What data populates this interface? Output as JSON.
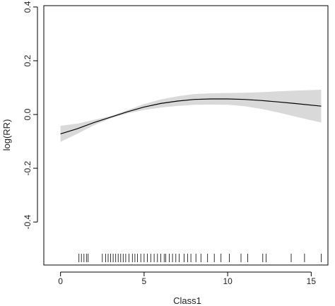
{
  "chart_data": {
    "type": "line",
    "xlabel": "Class1",
    "ylabel": "log(RR)",
    "xlim": [
      -1,
      16
    ],
    "ylim": [
      -0.56,
      0.405
    ],
    "x_ticks": [
      0,
      5,
      10,
      15
    ],
    "x_tick_labels": [
      "0",
      "5",
      "10",
      "15"
    ],
    "y_ticks": [
      -0.4,
      -0.2,
      0.0,
      0.2,
      0.4
    ],
    "y_tick_labels": [
      "-0.4",
      "-0.2",
      "0.0",
      "0.2",
      "0.4"
    ],
    "grid": false,
    "series": [
      {
        "role": "estimate",
        "color": "#000000",
        "x": [
          0,
          1,
          2,
          3,
          4,
          5,
          6,
          7,
          8,
          9,
          10,
          11,
          12,
          13,
          14,
          15.6
        ],
        "y": [
          -0.072,
          -0.053,
          -0.03,
          -0.01,
          0.01,
          0.028,
          0.041,
          0.05,
          0.056,
          0.058,
          0.058,
          0.056,
          0.052,
          0.047,
          0.041,
          0.031
        ]
      },
      {
        "role": "confidence_band",
        "color": "#d9d9d9",
        "x": [
          0,
          1,
          2,
          3,
          4,
          5,
          6,
          7,
          8,
          9,
          10,
          11,
          12,
          13,
          14,
          15.6
        ],
        "lower": [
          -0.102,
          -0.072,
          -0.04,
          -0.014,
          0.004,
          0.017,
          0.026,
          0.032,
          0.036,
          0.037,
          0.036,
          0.031,
          0.021,
          0.008,
          -0.007,
          -0.03
        ],
        "upper": [
          -0.042,
          -0.034,
          -0.02,
          -0.006,
          0.016,
          0.039,
          0.056,
          0.068,
          0.076,
          0.079,
          0.08,
          0.081,
          0.083,
          0.086,
          0.089,
          0.092
        ]
      }
    ],
    "rug": [
      1.1,
      1.25,
      1.4,
      1.55,
      1.65,
      2.5,
      2.7,
      2.85,
      3.0,
      3.15,
      3.3,
      3.45,
      3.6,
      3.75,
      3.9,
      4.1,
      4.3,
      4.45,
      4.6,
      4.8,
      5.0,
      5.2,
      5.4,
      5.6,
      5.8,
      6.0,
      6.2,
      6.3,
      6.5,
      6.7,
      6.9,
      7.1,
      7.4,
      7.6,
      7.8,
      8.1,
      8.4,
      8.8,
      9.2,
      9.6,
      10.1,
      10.8,
      11.2,
      12.1,
      12.3,
      13.8,
      14.6,
      15.6
    ]
  }
}
